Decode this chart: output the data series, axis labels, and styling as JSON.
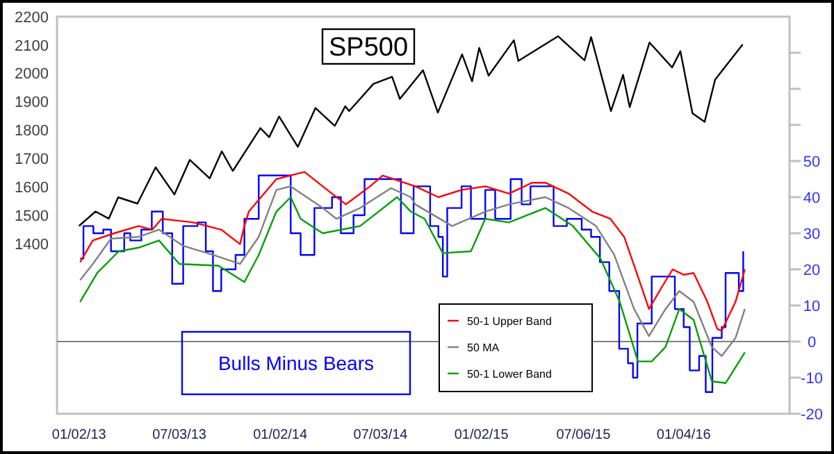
{
  "chart_data": {
    "type": "line",
    "annotations": [
      "SP500",
      "Bulls Minus Bears"
    ],
    "xlim": [
      "2012-11-23",
      "2016-07-14"
    ],
    "xticks": [
      {
        "value": "2013-01-02",
        "label": "01/02/13"
      },
      {
        "value": "2013-07-03",
        "label": "07/03/13"
      },
      {
        "value": "2014-01-02",
        "label": "01/02/14"
      },
      {
        "value": "2014-07-03",
        "label": "07/03/14"
      },
      {
        "value": "2015-01-02",
        "label": "01/02/15"
      },
      {
        "value": "2015-07-06",
        "label": "07/06/15"
      },
      {
        "value": "2016-01-04",
        "label": "01/04/16"
      }
    ],
    "ylim": [
      800,
      2200
    ],
    "yticks": [
      1400,
      1500,
      1600,
      1700,
      1800,
      1900,
      2000,
      2100,
      2200
    ],
    "y2lim": [
      -20,
      90
    ],
    "y2ticks": [
      -20,
      -10,
      0,
      10,
      20,
      30,
      40,
      50,
      {
        "value": 60,
        "label": null
      },
      {
        "value": 70,
        "label": null
      },
      {
        "value": 80,
        "label": null
      }
    ],
    "grid": false,
    "legend": "bottom right",
    "marker": "none",
    "line_style": "solid",
    "ref_lines": [
      {
        "axis": "y2",
        "value": 0,
        "label": null,
        "color": "#808080"
      }
    ],
    "series": [
      {
        "color": "#000000",
        "x": [
          "2013-01-02",
          "2013-02-01",
          "2013-02-25",
          "2013-03-14",
          "2013-04-18",
          "2013-05-21",
          "2013-06-24",
          "2013-07-22",
          "2013-08-27",
          "2013-09-18",
          "2013-10-08",
          "2013-11-27",
          "2013-12-13",
          "2013-12-31",
          "2014-02-03",
          "2014-03-07",
          "2014-04-11",
          "2014-04-30",
          "2014-05-07",
          "2014-06-20",
          "2014-07-24",
          "2014-08-07",
          "2014-09-18",
          "2014-10-15",
          "2014-11-28",
          "2014-12-16",
          "2014-12-29",
          "2015-01-15",
          "2015-03-02",
          "2015-03-10",
          "2015-05-21",
          "2015-07-08",
          "2015-07-20",
          "2015-08-25",
          "2015-09-16",
          "2015-09-28",
          "2015-11-03",
          "2015-12-14",
          "2015-12-29",
          "2016-01-20",
          "2016-02-11",
          "2016-03-01",
          "2016-04-20"
        ],
        "values": [
          1462,
          1513,
          1488,
          1563,
          1541,
          1669,
          1573,
          1695,
          1630,
          1725,
          1656,
          1807,
          1775,
          1848,
          1741,
          1878,
          1815,
          1884,
          1867,
          1963,
          1988,
          1910,
          2011,
          1862,
          2067,
          1972,
          2090,
          1992,
          2117,
          2044,
          2131,
          2046,
          2128,
          1867,
          1995,
          1881,
          2109,
          2021,
          2078,
          1859,
          1829,
          1978,
          2102
        ]
      },
      {
        "type": "step",
        "axis": "y2",
        "color": "#0000ff",
        "x": [
          "2013-01-04",
          "2013-01-10",
          "2013-01-28",
          "2013-02-15",
          "2013-03-01",
          "2013-03-25",
          "2013-04-05",
          "2013-04-25",
          "2013-05-14",
          "2013-06-03",
          "2013-06-20",
          "2013-07-10",
          "2013-08-05",
          "2013-08-20",
          "2013-09-02",
          "2013-09-17",
          "2013-10-13",
          "2013-10-29",
          "2013-11-24",
          "2013-12-26",
          "2014-01-21",
          "2014-02-08",
          "2014-03-05",
          "2014-04-06",
          "2014-04-22",
          "2014-05-15",
          "2014-06-04",
          "2014-07-07",
          "2014-08-09",
          "2014-09-01",
          "2014-10-01",
          "2014-10-16",
          "2014-10-24",
          "2014-11-01",
          "2014-11-27",
          "2014-12-14",
          "2015-01-09",
          "2015-01-27",
          "2015-02-24",
          "2015-03-16",
          "2015-04-01",
          "2015-04-25",
          "2015-05-13",
          "2015-06-06",
          "2015-07-03",
          "2015-07-20",
          "2015-08-05",
          "2015-08-22",
          "2015-09-09",
          "2015-09-25",
          "2015-10-04",
          "2015-10-12",
          "2015-11-07",
          "2015-12-01",
          "2015-12-19",
          "2016-01-04",
          "2016-01-15",
          "2016-02-01",
          "2016-02-13",
          "2016-02-25",
          "2016-03-13",
          "2016-03-20",
          "2016-04-06",
          "2016-04-13",
          "2016-04-21"
        ],
        "values": [
          23,
          32,
          30,
          31,
          25,
          30,
          28,
          31,
          36,
          30,
          16,
          32,
          33,
          25,
          14,
          20,
          24,
          34,
          46,
          46,
          30,
          24,
          37,
          40,
          30,
          35,
          45,
          45,
          30,
          43,
          32,
          29,
          18,
          37,
          43,
          34,
          42,
          34,
          45,
          38,
          43,
          43,
          32,
          34,
          31,
          29,
          22,
          14,
          -2,
          -6,
          -10,
          5,
          18,
          18,
          9,
          4,
          -8,
          -4,
          -14,
          1,
          4,
          19,
          19,
          14,
          25
        ]
      },
      {
        "name": "50-1 Upper Band",
        "axis": "y2",
        "color": "#ff0000",
        "x": [
          "2013-01-04",
          "2013-01-27",
          "2013-03-07",
          "2013-04-20",
          "2013-05-15",
          "2013-06-01",
          "2013-07-28",
          "2013-09-17",
          "2013-10-21",
          "2013-10-29",
          "2013-11-06",
          "2013-12-26",
          "2014-02-15",
          "2014-03-20",
          "2014-05-01",
          "2014-06-14",
          "2014-07-07",
          "2014-09-04",
          "2014-10-16",
          "2014-11-27",
          "2015-01-09",
          "2015-02-21",
          "2015-04-04",
          "2015-04-28",
          "2015-06-09",
          "2015-07-22",
          "2015-08-24",
          "2015-09-18",
          "2015-10-13",
          "2015-11-02",
          "2015-11-25",
          "2015-12-15",
          "2016-01-04",
          "2016-01-22",
          "2016-02-16",
          "2016-03-05",
          "2016-03-13",
          "2016-04-07",
          "2016-04-24"
        ],
        "values": [
          22,
          28,
          30,
          32,
          31,
          34,
          33,
          31,
          27,
          32,
          36,
          45,
          47,
          43,
          38,
          43,
          46,
          43,
          40,
          42,
          43,
          41,
          44,
          44,
          41,
          36,
          34,
          29,
          18,
          9,
          15,
          20,
          18.5,
          19,
          11,
          3.5,
          3,
          11,
          20
        ]
      },
      {
        "name": "50 MA",
        "axis": "y2",
        "color": "#808080",
        "x": [
          "2013-01-04",
          "2013-01-27",
          "2013-03-01",
          "2013-04-20",
          "2013-05-27",
          "2013-07-10",
          "2013-09-02",
          "2013-10-21",
          "2013-11-24",
          "2013-12-26",
          "2014-01-21",
          "2014-03-20",
          "2014-04-14",
          "2014-05-27",
          "2014-07-22",
          "2014-08-27",
          "2014-09-04",
          "2014-11-10",
          "2015-01-09",
          "2015-02-21",
          "2015-04-28",
          "2015-06-09",
          "2015-07-29",
          "2015-08-31",
          "2015-10-06",
          "2015-11-02",
          "2015-12-02",
          "2015-12-27",
          "2016-01-22",
          "2016-02-24",
          "2016-03-13",
          "2016-04-07",
          "2016-04-24"
        ],
        "values": [
          17,
          21.5,
          28.5,
          29,
          31,
          26.5,
          24,
          21.5,
          29,
          42,
          43,
          37,
          34,
          37,
          42.5,
          40,
          38,
          32,
          36,
          38,
          40,
          37,
          32,
          24,
          9,
          1.5,
          9,
          14,
          11,
          -1.5,
          -4,
          1,
          9
        ]
      },
      {
        "name": "50-1 Lower Band",
        "axis": "y2",
        "color": "#00a000",
        "x": [
          "2013-01-04",
          "2013-02-04",
          "2013-03-15",
          "2013-04-20",
          "2013-05-27",
          "2013-07-03",
          "2013-09-12",
          "2013-10-29",
          "2013-11-24",
          "2013-12-26",
          "2014-01-21",
          "2014-02-08",
          "2014-03-20",
          "2014-05-27",
          "2014-08-02",
          "2014-08-27",
          "2014-09-21",
          "2014-10-24",
          "2014-12-14",
          "2015-01-09",
          "2015-02-21",
          "2015-04-28",
          "2015-06-17",
          "2015-08-06",
          "2015-09-10",
          "2015-10-13",
          "2015-11-07",
          "2015-12-02",
          "2015-12-27",
          "2016-01-22",
          "2016-02-24",
          "2016-03-20",
          "2016-04-24"
        ],
        "values": [
          11,
          19,
          25,
          26,
          28,
          21.5,
          21,
          16.5,
          24,
          36,
          40,
          34,
          30,
          32,
          40,
          36,
          34,
          24.5,
          25,
          34,
          33,
          37,
          32,
          23,
          11,
          -5.5,
          -5.5,
          -1.5,
          9,
          6,
          -11,
          -11.5,
          -3
        ]
      }
    ]
  }
}
